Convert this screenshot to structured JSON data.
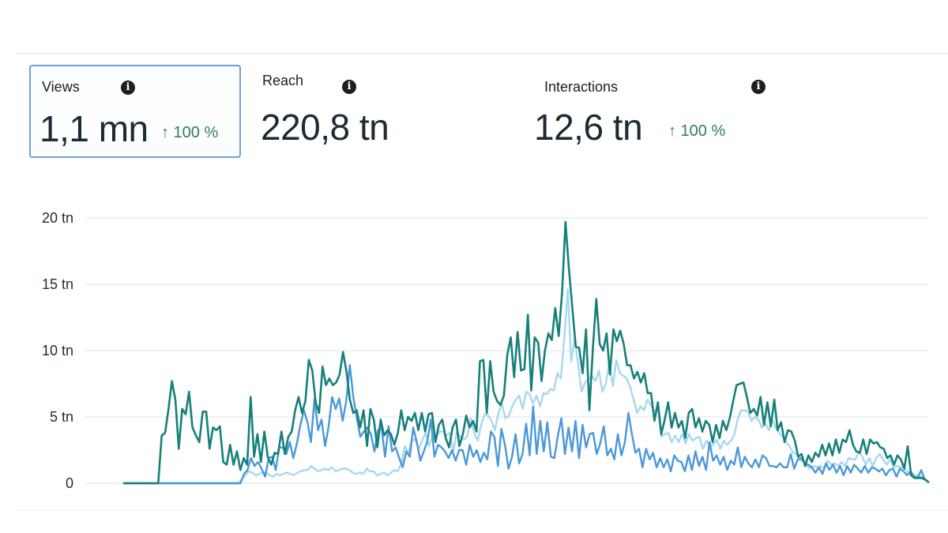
{
  "metrics": [
    {
      "label": "Views",
      "value": "1,1 mn",
      "change": "↑ 100 %",
      "selected": true
    },
    {
      "label": "Reach",
      "value": "220,8 tn",
      "change": "",
      "selected": false
    },
    {
      "label": "Interactions",
      "value": "12,6 tn",
      "change": "↑ 100 %",
      "selected": false
    }
  ],
  "icons": {
    "info": "info-icon"
  },
  "chart_data": {
    "type": "line",
    "title": "",
    "xlabel": "",
    "ylabel": "",
    "ylim": [
      0,
      20
    ],
    "yticks": [
      0,
      5,
      10,
      15,
      20
    ],
    "ytick_labels": [
      "0",
      "5 tn",
      "10 tn",
      "15 tn",
      "20 tn"
    ],
    "grid": true,
    "legend": "none",
    "colors": [
      "#16807a",
      "#a8d8f0",
      "#4a98d9"
    ],
    "series": [
      {
        "values": [
          0,
          0,
          0,
          0,
          0,
          0,
          0,
          0,
          0,
          0,
          0,
          3.6,
          3.8,
          5.6,
          7.7,
          6.3,
          2.6,
          5.6,
          5.2,
          6.9,
          4.2,
          3.6,
          3.1,
          5.4,
          5.4,
          2.6,
          4.2,
          4.0,
          4.3,
          1.6,
          1.4,
          2.9,
          1.4,
          2.4,
          1.0,
          1.9,
          1.4,
          6.5,
          2.0,
          3.7,
          1.6,
          3.9,
          2.0,
          1.4,
          2.3,
          2.2,
          3.9,
          2.2,
          3.5,
          3.9,
          5.5,
          6.5,
          5.3,
          6.2,
          9.3,
          8.5,
          6.1,
          5.3,
          8.8,
          7.4,
          7.9,
          7.4,
          7.6,
          8.2,
          9.9,
          8.4,
          6.3,
          5.3,
          5.5,
          4.2,
          5.5,
          2.8,
          5.6,
          4.8,
          2.7,
          4.8,
          3.6,
          4.0,
          3.7,
          2.9,
          3.8,
          5.5,
          4.0,
          5.0,
          4.7,
          5.3,
          4.0,
          5.3,
          3.9,
          5.2,
          5.3,
          3.1,
          4.4,
          4.8,
          3.4,
          2.7,
          4.2,
          4.8,
          2.8,
          3.7,
          5.1,
          4.2,
          4.7,
          3.9,
          9.2,
          9.3,
          5.3,
          9.2,
          6.9,
          6.2,
          5.9,
          6.6,
          9.7,
          11.0,
          8.0,
          11.4,
          8.5,
          8.6,
          12.7,
          7.0,
          11.0,
          10.6,
          7.7,
          10.0,
          11.3,
          10.8,
          13.2,
          11.1,
          14.4,
          19.7,
          16.2,
          13.2,
          10.3,
          10.2,
          8.3,
          11.6,
          5.5,
          10.2,
          13.9,
          10.5,
          10.0,
          11.3,
          8.2,
          11.6,
          10.7,
          11.5,
          10.5,
          8.9,
          8.9,
          7.9,
          8.4,
          7.6,
          8.3,
          6.8,
          6.8,
          4.7,
          6.1,
          3.7,
          4.8,
          6.1,
          4.2,
          5.3,
          4.2,
          4.7,
          3.4,
          5.3,
          5.6,
          4.2,
          4.9,
          3.9,
          4.7,
          4.4,
          3.1,
          4.4,
          3.4,
          4.7,
          4.0,
          4.9,
          6.2,
          7.4,
          7.5,
          7.6,
          6.5,
          5.3,
          5.6,
          5.1,
          6.5,
          4.4,
          6.1,
          4.3,
          6.3,
          4.0,
          4.6,
          3.1,
          4.0,
          3.9,
          3.2,
          2.0,
          2.2,
          1.3,
          2.1,
          1.6,
          2.3,
          2.0,
          2.9,
          2.1,
          3.0,
          2.1,
          3.3,
          2.3,
          3.3,
          3.1,
          4.0,
          2.9,
          2.4,
          2.3,
          3.3,
          2.2,
          3.3,
          3.0,
          3.1,
          2.7,
          2.6,
          1.9,
          2.1,
          1.4,
          2.1,
          1.8,
          1.1,
          2.8,
          0.6,
          0.4,
          0.4,
          0.4,
          0.3,
          0.1
        ]
      },
      {
        "values": [
          0,
          0,
          0,
          0,
          0,
          0,
          0,
          0,
          0,
          0,
          0,
          0,
          0,
          0,
          0,
          0,
          0,
          0,
          0,
          0,
          0,
          0,
          0,
          0,
          0,
          0,
          0,
          0,
          0,
          0,
          0,
          0,
          0,
          0,
          0.3,
          0.6,
          0.9,
          0.8,
          0.6,
          0.7,
          0.8,
          0.8,
          0.6,
          0.5,
          0.7,
          0.6,
          0.7,
          0.8,
          0.7,
          0.6,
          0.8,
          0.9,
          1.0,
          1.0,
          1.3,
          1.1,
          0.9,
          1.0,
          1.1,
          1.0,
          1.2,
          0.9,
          1.0,
          1.1,
          1.1,
          1.0,
          0.8,
          0.7,
          0.8,
          0.7,
          1.1,
          0.9,
          0.9,
          0.6,
          0.7,
          0.8,
          0.6,
          0.8,
          1.0,
          0.9,
          1.5,
          2.8,
          2.3,
          3.2,
          3.3,
          2.6,
          3.2,
          3.8,
          2.8,
          3.6,
          3.5,
          3.9,
          3.9,
          3.6,
          3.8,
          2.4,
          3.9,
          3.5,
          3.3,
          3.5,
          4.9,
          3.8,
          3.2,
          4.4,
          5.2,
          5.1,
          4.7,
          4.0,
          5.3,
          6.0,
          4.9,
          5.1,
          5.8,
          6.3,
          6.6,
          5.6,
          6.9,
          6.7,
          6.0,
          6.6,
          5.8,
          6.8,
          6.7,
          7.1,
          7.0,
          8.3,
          7.9,
          10.9,
          14.6,
          9.2,
          10.9,
          9.0,
          6.9,
          7.6,
          7.9,
          8.1,
          7.7,
          8.5,
          6.9,
          7.5,
          9.1,
          7.3,
          9.3,
          8.3,
          8.1,
          7.9,
          7.3,
          6.3,
          5.3,
          5.8,
          5.5,
          6.3,
          5.9,
          5.4,
          5.7,
          3.5,
          3.7,
          3.8,
          3.1,
          3.6,
          3.1,
          3.7,
          3.0,
          3.7,
          3.2,
          3.4,
          3.5,
          2.6,
          3.2,
          2.8,
          2.9,
          3.3,
          2.6,
          3.2,
          2.9,
          3.2,
          3.6,
          4.8,
          5.5,
          5.5,
          5.4,
          4.7,
          5.0,
          4.8,
          4.2,
          4.5,
          4.0,
          4.8,
          4.2,
          3.8,
          3.5,
          3.1,
          2.8,
          2.3,
          2.2,
          1.7,
          1.7,
          1.3,
          1.1,
          1.3,
          1.2,
          1.3,
          1.1,
          1.7,
          1.4,
          1.5,
          1.3,
          1.6,
          1.3,
          1.9,
          1.8,
          1.8,
          2.4,
          2.0,
          1.4,
          1.9,
          1.3,
          1.9,
          2.2,
          1.8,
          1.4,
          1.8,
          1.2,
          1.3,
          1.2,
          1.2,
          0.9,
          0.6,
          0.6,
          0.6,
          0.5,
          0.3,
          0.1
        ]
      },
      {
        "values": [
          0,
          0,
          0,
          0,
          0,
          0,
          0,
          0,
          0,
          0,
          0,
          0,
          0,
          0,
          0,
          0,
          0,
          0,
          0,
          0,
          0,
          0,
          0,
          0,
          0,
          0,
          0,
          0,
          0,
          0,
          0,
          0,
          0,
          0,
          0.7,
          1.0,
          1.9,
          1.3,
          1.6,
          1.1,
          0.5,
          1.9,
          2.0,
          1.0,
          2.7,
          2.7,
          2.2,
          3.1,
          1.9,
          3.0,
          4.4,
          5.5,
          4.6,
          3.1,
          6.4,
          4.0,
          4.8,
          2.8,
          4.3,
          6.5,
          5.6,
          6.4,
          4.7,
          6.2,
          8.9,
          6.5,
          4.9,
          3.5,
          3.9,
          4.2,
          3.7,
          2.4,
          4.0,
          4.2,
          2.0,
          4.3,
          2.4,
          2.7,
          1.9,
          1.2,
          2.4,
          2.0,
          4.2,
          3.1,
          1.7,
          2.4,
          3.2,
          4.8,
          2.0,
          2.9,
          2.7,
          2.4,
          1.9,
          2.5,
          1.7,
          2.5,
          2.5,
          1.4,
          2.9,
          2.0,
          2.5,
          1.6,
          2.3,
          1.8,
          3.9,
          3.5,
          1.3,
          4.1,
          2.9,
          1.1,
          2.0,
          3.7,
          1.5,
          2.2,
          4.5,
          2.1,
          5.8,
          2.2,
          4.7,
          2.4,
          4.6,
          2.0,
          1.9,
          3.6,
          4.9,
          2.2,
          4.2,
          2.4,
          4.7,
          1.9,
          4.4,
          2.7,
          3.7,
          3.8,
          2.2,
          3.0,
          4.3,
          2.1,
          2.6,
          1.8,
          3.7,
          2.1,
          3.1,
          5.3,
          3.7,
          2.3,
          2.6,
          1.2,
          2.6,
          1.8,
          2.3,
          1.2,
          1.9,
          1.2,
          1.8,
          0.9,
          2.1,
          1.7,
          1.6,
          0.9,
          2.1,
          1.0,
          2.4,
          1.3,
          2.0,
          1.0,
          3.1,
          1.7,
          2.1,
          1.4,
          2.0,
          1.0,
          1.7,
          1.4,
          2.7,
          1.2,
          2.0,
          1.5,
          1.2,
          1.8,
          1.2,
          2.1,
          1.9,
          1.3,
          1.3,
          1.2,
          1.5,
          1.2,
          1.2,
          2.2,
          1.1,
          1.8,
          1.9,
          1.5,
          1.4,
          1.2,
          0.8,
          1.2,
          0.7,
          1.5,
          1.0,
          1.4,
          0.8,
          1.3,
          0.6,
          1.3,
          0.8,
          1.4,
          1.1,
          0.8,
          1.3,
          0.8,
          1.2,
          1.1,
          0.9,
          1.1,
          0.6,
          1.0,
          1.1,
          0.5,
          1.1,
          0.9,
          0.6,
          0.9,
          0.5,
          0.4,
          1.0,
          0.3,
          0.1
        ]
      }
    ]
  }
}
